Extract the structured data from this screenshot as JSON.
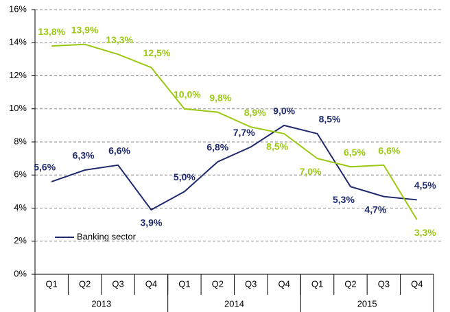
{
  "chart_data": {
    "type": "line",
    "categories": [
      "Q1",
      "Q2",
      "Q3",
      "Q4",
      "Q1",
      "Q2",
      "Q3",
      "Q4",
      "Q1",
      "Q2",
      "Q3",
      "Q4"
    ],
    "groups": [
      "2013",
      "2014",
      "2015"
    ],
    "series": [
      {
        "name": "Banking sector",
        "color": "#1f2a6e",
        "values": [
          5.6,
          6.3,
          6.6,
          3.9,
          5.0,
          6.8,
          7.7,
          9.0,
          8.5,
          5.3,
          4.7,
          4.5
        ],
        "value_labels": [
          "5,6%",
          "6,3%",
          "6,6%",
          "3,9%",
          "5,0%",
          "6,8%",
          "7,7%",
          "9,0%",
          "8,5%",
          "5,3%",
          "4,7%",
          "4,5%"
        ]
      },
      {
        "color": "#9bc813",
        "values": [
          13.8,
          13.9,
          13.3,
          12.5,
          10.0,
          9.8,
          8.9,
          8.5,
          7.0,
          6.5,
          6.6,
          3.3
        ],
        "value_labels": [
          "13,8%",
          "13,9%",
          "13,3%",
          "12,5%",
          "10,0%",
          "9,8%",
          "8,9%",
          "8,5%",
          "7,0%",
          "6,5%",
          "6,6%",
          "3,3%"
        ]
      }
    ],
    "ylim": [
      0,
      16
    ],
    "yticks": [
      {
        "value": 0,
        "label": "0%"
      },
      {
        "value": 2,
        "label": "2%"
      },
      {
        "value": 4,
        "label": "4%"
      },
      {
        "value": 6,
        "label": "6%"
      },
      {
        "value": 8,
        "label": "8%"
      },
      {
        "value": 10,
        "label": "10%"
      },
      {
        "value": 12,
        "label": "12%"
      },
      {
        "value": 14,
        "label": "14%"
      },
      {
        "value": 16,
        "label": "16%"
      }
    ],
    "grid": true,
    "legend": "lower left"
  }
}
